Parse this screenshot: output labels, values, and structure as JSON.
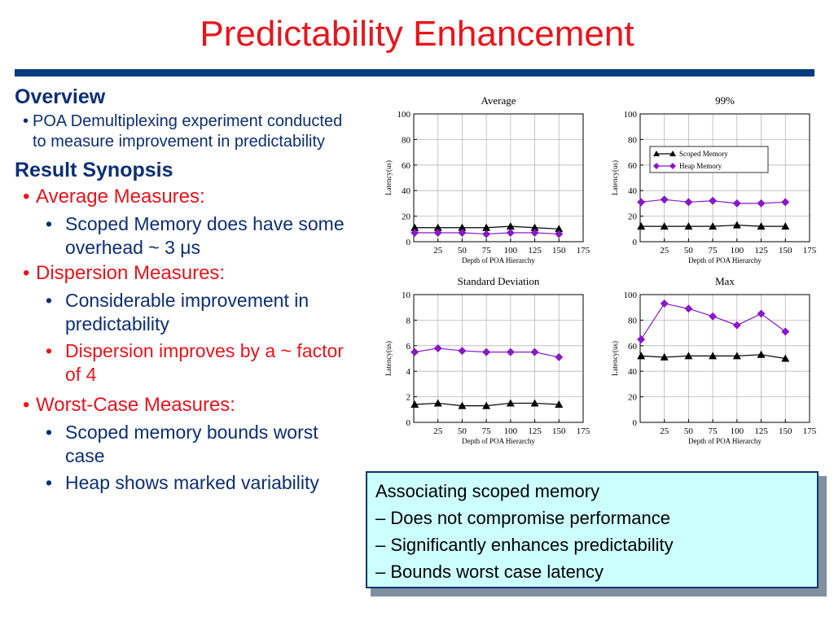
{
  "slide": {
    "title": "Predictability Enhancement",
    "colors": {
      "title": "#e8141c",
      "rule": "#003a80",
      "text": "#0b2f74",
      "accent_red": "#e8141c",
      "callout_bg": "#ccffff"
    }
  },
  "overview": {
    "heading": "Overview",
    "bullet": "POA Demultiplexing experiment conducted to measure improvement in predictability"
  },
  "synopsis": {
    "heading": "Result Synopsis",
    "average": {
      "label": "Average Measures:",
      "items": [
        "Scoped Memory does have some overhead ~ 3 μs"
      ]
    },
    "dispersion": {
      "label": "Dispersion Measures:",
      "items": [
        "Considerable improvement in predictability",
        "Dispersion improves by a ~ factor of 4"
      ]
    },
    "worst_case": {
      "label": "Worst-Case Measures:",
      "items": [
        "Scoped memory bounds worst case",
        "Heap shows marked variability"
      ]
    }
  },
  "callout": {
    "lines": [
      "Associating scoped memory",
      "– Does not compromise performance",
      "– Significantly enhances predictability",
      "– Bounds worst case latency"
    ]
  },
  "chart_data": [
    {
      "type": "line",
      "title": "Average",
      "xlabel": "Depth of POA Hierarchy",
      "ylabel": "Latency(us)",
      "xlim": [
        0,
        175
      ],
      "ylim": [
        0,
        100
      ],
      "xticks": [
        25,
        50,
        75,
        100,
        125,
        150,
        175
      ],
      "yticks": [
        0,
        20,
        40,
        60,
        80,
        100
      ],
      "x": [
        1,
        25,
        50,
        75,
        100,
        125,
        150
      ],
      "series": [
        {
          "name": "Scoped Memory",
          "color": "#000000",
          "marker": "triangle",
          "values": [
            11,
            11,
            11,
            11,
            12,
            11,
            10
          ]
        },
        {
          "name": "Heap Memory",
          "color": "#8a18c8",
          "marker": "diamond",
          "values": [
            7,
            7,
            7,
            6,
            7,
            7,
            6
          ]
        }
      ],
      "legend": null
    },
    {
      "type": "line",
      "title": "99%",
      "xlabel": "Depth of POA Hierarchy",
      "ylabel": "Latency(us)",
      "xlim": [
        0,
        175
      ],
      "ylim": [
        0,
        100
      ],
      "xticks": [
        25,
        50,
        75,
        100,
        125,
        150,
        175
      ],
      "yticks": [
        0,
        20,
        40,
        60,
        80,
        100
      ],
      "x": [
        1,
        25,
        50,
        75,
        100,
        125,
        150
      ],
      "series": [
        {
          "name": "Scoped Memory",
          "color": "#000000",
          "marker": "triangle",
          "values": [
            12,
            12,
            12,
            12,
            13,
            12,
            12
          ]
        },
        {
          "name": "Heap Memory",
          "color": "#8a18c8",
          "marker": "diamond",
          "values": [
            31,
            33,
            31,
            32,
            30,
            30,
            31
          ]
        }
      ],
      "legend": "top-left"
    },
    {
      "type": "line",
      "title": "Standard Deviation",
      "xlabel": "Depth of POA Hierarchy",
      "ylabel": "Latency(us)",
      "xlim": [
        0,
        175
      ],
      "ylim": [
        0,
        10
      ],
      "xticks": [
        25,
        50,
        75,
        100,
        125,
        150,
        175
      ],
      "yticks": [
        0,
        2,
        4,
        6,
        8,
        10
      ],
      "x": [
        1,
        25,
        50,
        75,
        100,
        125,
        150
      ],
      "series": [
        {
          "name": "Scoped Memory",
          "color": "#000000",
          "marker": "triangle",
          "values": [
            1.4,
            1.5,
            1.3,
            1.3,
            1.5,
            1.5,
            1.4
          ]
        },
        {
          "name": "Heap Memory",
          "color": "#8a18c8",
          "marker": "diamond",
          "values": [
            5.5,
            5.8,
            5.6,
            5.5,
            5.5,
            5.5,
            5.1
          ]
        }
      ],
      "legend": null
    },
    {
      "type": "line",
      "title": "Max",
      "xlabel": "Depth of POA Hierarchy",
      "ylabel": "Latency(us)",
      "xlim": [
        0,
        175
      ],
      "ylim": [
        0,
        100
      ],
      "xticks": [
        25,
        50,
        75,
        100,
        125,
        150,
        175
      ],
      "yticks": [
        0,
        20,
        40,
        60,
        80,
        100
      ],
      "x": [
        1,
        25,
        50,
        75,
        100,
        125,
        150
      ],
      "series": [
        {
          "name": "Scoped Memory",
          "color": "#000000",
          "marker": "triangle",
          "values": [
            52,
            51,
            52,
            52,
            52,
            53,
            50
          ]
        },
        {
          "name": "Heap Memory",
          "color": "#8a18c8",
          "marker": "diamond",
          "values": [
            65,
            93,
            89,
            83,
            76,
            85,
            71
          ]
        }
      ],
      "legend": null
    }
  ]
}
